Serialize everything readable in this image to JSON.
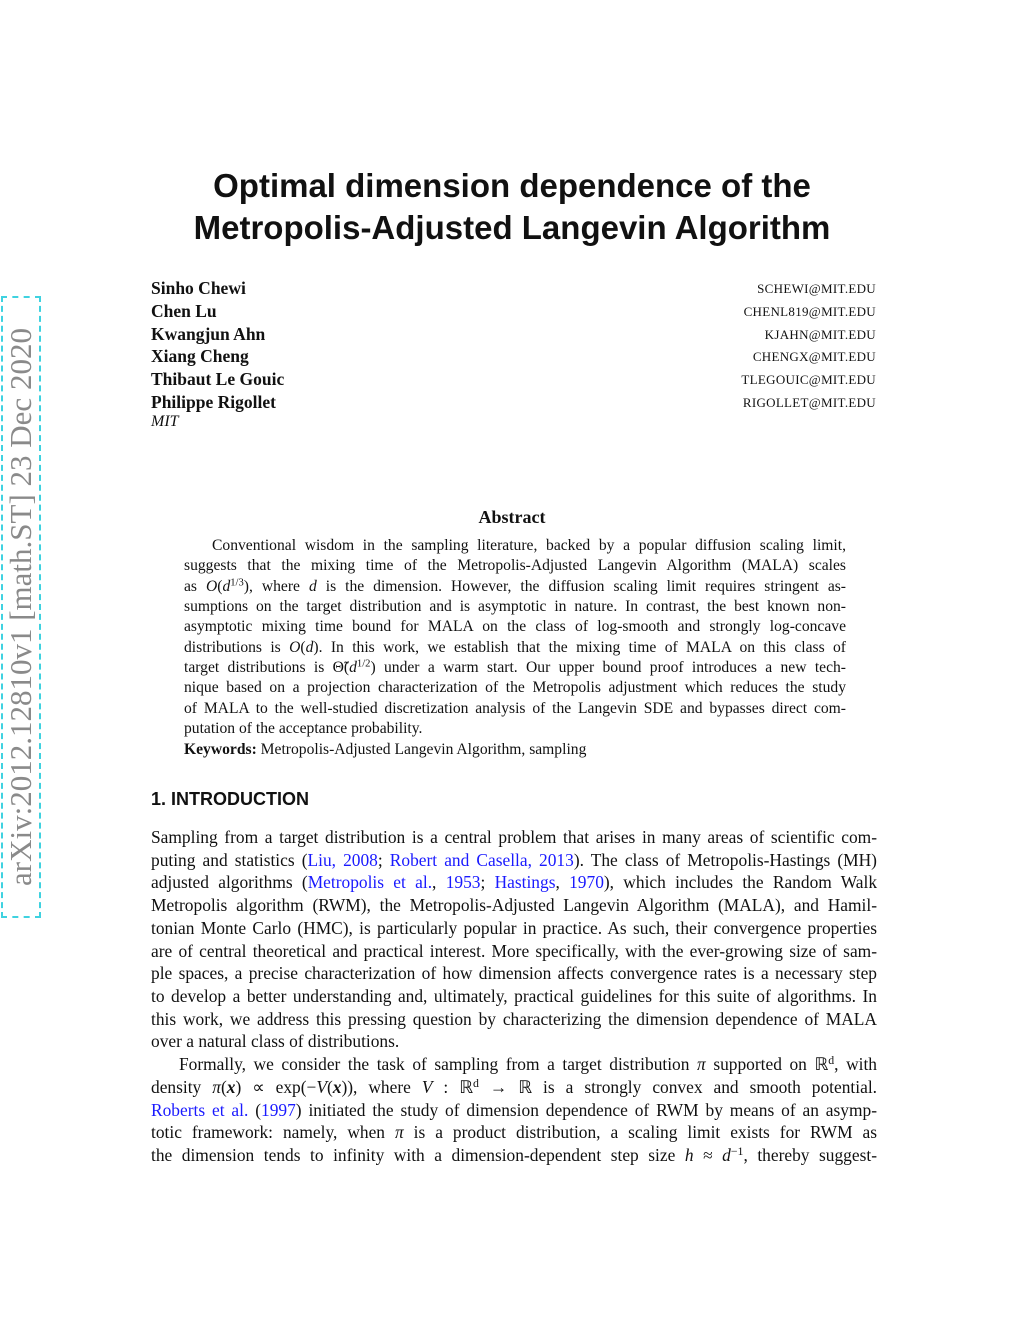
{
  "stamp": "arXiv:2012.12810v1  [math.ST]  23 Dec 2020",
  "title": [
    "Optimal dimension dependence of the",
    "Metropolis-Adjusted Langevin Algorithm"
  ],
  "authors": [
    {
      "name": "Sinho Chewi",
      "email": "SCHEWI@MIT.EDU"
    },
    {
      "name": "Chen Lu",
      "email": "CHENL819@MIT.EDU"
    },
    {
      "name": "Kwangjun Ahn",
      "email": "KJAHN@MIT.EDU"
    },
    {
      "name": "Xiang Cheng",
      "email": "CHENGX@MIT.EDU"
    },
    {
      "name": "Thibaut Le Gouic",
      "email": "TLEGOUIC@MIT.EDU"
    },
    {
      "name": "Philippe Rigollet",
      "email": "RIGOLLET@MIT.EDU"
    }
  ],
  "affiliation": "MIT",
  "abstract": {
    "heading": "Abstract",
    "lines": [
      [
        "Conventional wisdom in the sampling literature, backed by a popular diffusion scaling limit,"
      ],
      [
        "suggests that the mixing time of the Metropolis-Adjusted Langevin Algorithm (MALA) scales"
      ],
      [
        "as ",
        {
          "t": "O",
          "s": "i"
        },
        "(",
        {
          "t": "d",
          "s": "i"
        },
        {
          "t": "1/3",
          "s": "sup"
        },
        "), where ",
        {
          "t": "d",
          "s": "i"
        },
        " is the dimension.  However, the diffusion scaling limit requires stringent as-"
      ],
      [
        "sumptions on the target distribution and is asymptotic in nature.  In contrast, the best known non-"
      ],
      [
        "asymptotic mixing time bound for MALA on the class of log-smooth and strongly log-concave"
      ],
      [
        "distributions is ",
        {
          "t": "O",
          "s": "i"
        },
        "(",
        {
          "t": "d",
          "s": "i"
        },
        ").  In this work, we establish that the mixing time of MALA on this class of"
      ],
      [
        "target distributions is Θ̃(",
        {
          "t": "d",
          "s": "i"
        },
        {
          "t": "1/2",
          "s": "sup"
        },
        ") under a warm start.  Our upper bound proof introduces a new tech-"
      ],
      [
        "nique based on a projection characterization of the Metropolis adjustment which reduces the study"
      ],
      [
        "of MALA to the well-studied discretization analysis of the Langevin SDE and bypasses direct com-"
      ],
      [
        "putation of the acceptance probability."
      ]
    ],
    "keywords_label": "Keywords:",
    "keywords": " Metropolis-Adjusted Langevin Algorithm, sampling"
  },
  "section": {
    "heading": "1.  INTRODUCTION",
    "paragraphs": [
      [
        [
          "Sampling from a target distribution is a central problem that arises in many areas of scientific com-"
        ],
        [
          "puting and statistics (",
          {
            "t": "Liu, 2008",
            "s": "l"
          },
          "; ",
          {
            "t": "Robert and Casella, 2013",
            "s": "l"
          },
          "). The class of Metropolis-Hastings (MH)"
        ],
        [
          "adjusted algorithms (",
          {
            "t": "Metropolis et al.",
            "s": "l"
          },
          ", ",
          {
            "t": "1953",
            "s": "l"
          },
          "; ",
          {
            "t": "Hastings",
            "s": "l"
          },
          ", ",
          {
            "t": "1970",
            "s": "l"
          },
          "), which includes the Random Walk"
        ],
        [
          "Metropolis algorithm (RWM), the Metropolis-Adjusted Langevin Algorithm (MALA), and Hamil-"
        ],
        [
          "tonian Monte Carlo (HMC), is particularly popular in practice. As such, their convergence properties"
        ],
        [
          "are of central theoretical and practical interest. More specifically, with the ever-growing size of sam-"
        ],
        [
          "ple spaces, a precise characterization of how dimension affects convergence rates is a necessary step"
        ],
        [
          "to develop a better understanding and, ultimately, practical guidelines for this suite of algorithms. In"
        ],
        [
          "this work, we address this pressing question by characterizing the dimension dependence of MALA"
        ],
        [
          "over a natural class of distributions."
        ]
      ],
      [
        [
          "Formally, we consider the task of sampling from a target distribution ",
          {
            "t": "π",
            "s": "i"
          },
          " supported on ℝ",
          {
            "t": "d",
            "s": "sup"
          },
          ", with"
        ],
        [
          "density ",
          {
            "t": "π",
            "s": "i"
          },
          "(",
          {
            "t": "x",
            "s": "b"
          },
          ") ∝ exp(−",
          {
            "t": "V",
            "s": "i"
          },
          "(",
          {
            "t": "x",
            "s": "b"
          },
          ")), where ",
          {
            "t": "V",
            "s": "i"
          },
          " : ℝ",
          {
            "t": "d",
            "s": "sup"
          },
          " → ℝ is a strongly convex and smooth potential."
        ],
        [
          {
            "t": "Roberts et al.",
            "s": "l"
          },
          " (",
          {
            "t": "1997",
            "s": "l"
          },
          ") initiated the study of dimension dependence of RWM by means of an asymp-"
        ],
        [
          "totic framework:  namely, when ",
          {
            "t": "π",
            "s": "i"
          },
          " is a product distribution, a scaling limit exists for RWM as"
        ],
        [
          "the dimension tends to infinity with a dimension-dependent step size ",
          {
            "t": "h",
            "s": "i"
          },
          " ≈ ",
          {
            "t": "d",
            "s": "i"
          },
          {
            "t": "−1",
            "s": "sup"
          },
          ", thereby suggest-"
        ]
      ]
    ]
  },
  "colors": {
    "link": "#1a1aff",
    "stamp_border": "#3fd2e0",
    "stamp_text": "#8a8a8a"
  }
}
